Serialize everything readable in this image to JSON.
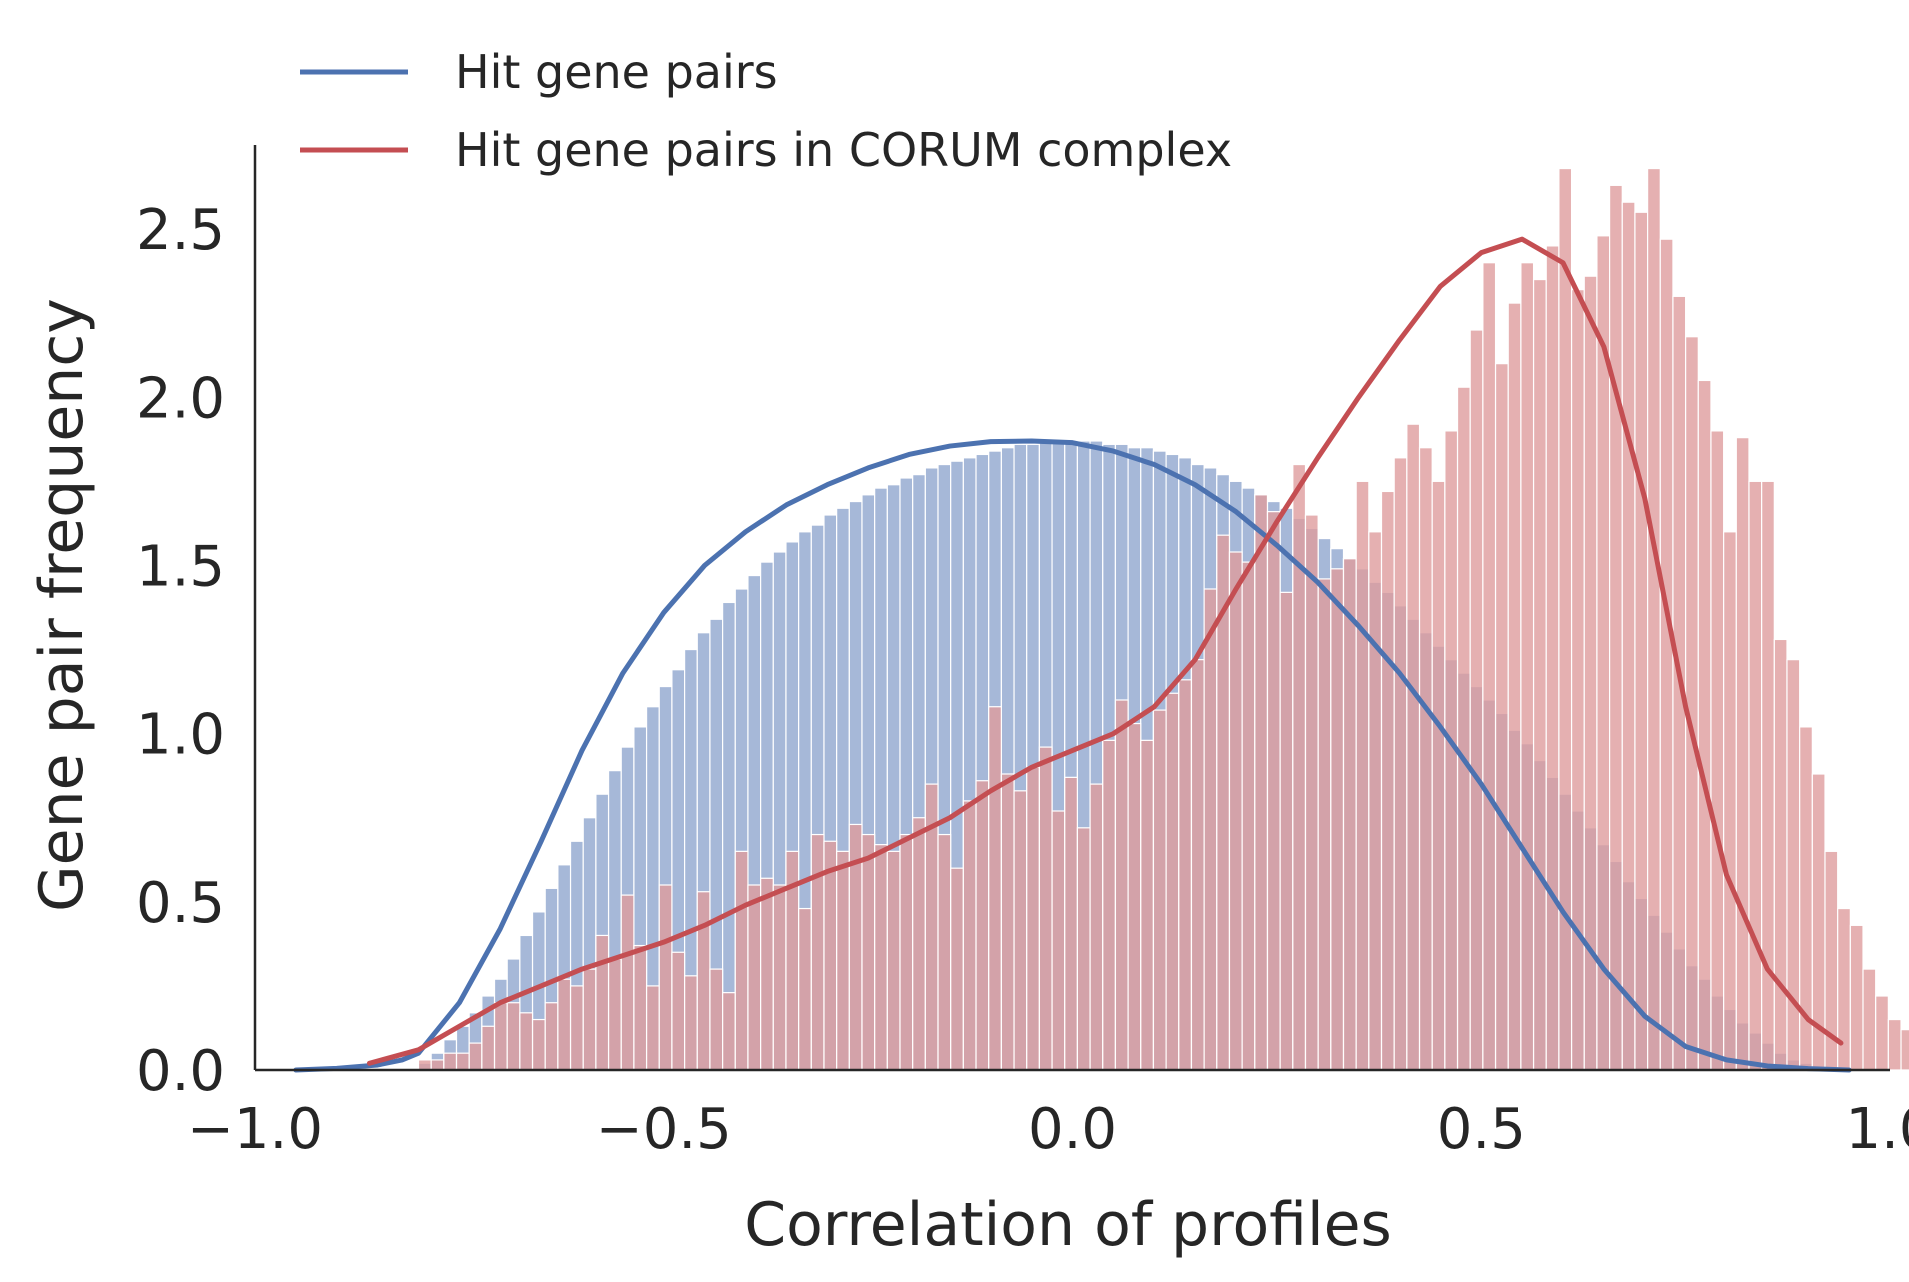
{
  "chart_data": {
    "type": "histogram",
    "title": "",
    "xlabel": "Correlation of profiles",
    "ylabel": "Gene pair frequency",
    "xlim": [
      -1.0,
      1.0
    ],
    "ylim": [
      0,
      2.75
    ],
    "xticks": [
      -1.0,
      -0.5,
      0.0,
      0.5,
      1.0
    ],
    "xtick_labels": [
      "−1.0",
      "−0.5",
      "0.0",
      "0.5",
      "1.0"
    ],
    "yticks": [
      0.0,
      0.5,
      1.0,
      1.5,
      2.0,
      2.5
    ],
    "ytick_labels": [
      "0.0",
      "0.5",
      "1.0",
      "1.5",
      "2.0",
      "2.5"
    ],
    "grid": false,
    "legend_position": "top-left, above plot",
    "bin_width": 0.0155,
    "series": [
      {
        "name": "Hit gene pairs",
        "color": "#4c72b0",
        "bar_fill": "#a6b8d8",
        "bin_start": -0.8,
        "values": [
          0.02,
          0.05,
          0.09,
          0.13,
          0.17,
          0.22,
          0.27,
          0.33,
          0.4,
          0.47,
          0.54,
          0.61,
          0.68,
          0.75,
          0.82,
          0.89,
          0.96,
          1.02,
          1.08,
          1.14,
          1.19,
          1.25,
          1.3,
          1.34,
          1.39,
          1.43,
          1.47,
          1.51,
          1.54,
          1.57,
          1.6,
          1.62,
          1.65,
          1.67,
          1.69,
          1.71,
          1.73,
          1.74,
          1.76,
          1.77,
          1.79,
          1.8,
          1.81,
          1.82,
          1.83,
          1.84,
          1.85,
          1.86,
          1.86,
          1.87,
          1.87,
          1.87,
          1.87,
          1.87,
          1.86,
          1.86,
          1.85,
          1.85,
          1.84,
          1.83,
          1.82,
          1.8,
          1.79,
          1.77,
          1.75,
          1.73,
          1.71,
          1.69,
          1.67,
          1.64,
          1.61,
          1.58,
          1.55,
          1.52,
          1.49,
          1.45,
          1.42,
          1.38,
          1.34,
          1.3,
          1.26,
          1.22,
          1.18,
          1.14,
          1.1,
          1.06,
          1.01,
          0.97,
          0.92,
          0.87,
          0.82,
          0.77,
          0.72,
          0.67,
          0.62,
          0.56,
          0.51,
          0.46,
          0.41,
          0.36,
          0.31,
          0.27,
          0.22,
          0.18,
          0.14,
          0.11,
          0.08,
          0.05,
          0.03,
          0.02
        ]
      },
      {
        "name": "Hit gene pairs in CORUM complex",
        "color": "#c44e52",
        "bar_fill": "#de9c9e",
        "bin_start": -0.8,
        "values": [
          0.03,
          0.03,
          0.05,
          0.05,
          0.08,
          0.13,
          0.2,
          0.2,
          0.17,
          0.15,
          0.2,
          0.27,
          0.25,
          0.3,
          0.4,
          0.33,
          0.52,
          0.37,
          0.25,
          0.55,
          0.35,
          0.28,
          0.53,
          0.3,
          0.23,
          0.65,
          0.55,
          0.57,
          0.55,
          0.65,
          0.48,
          0.7,
          0.68,
          0.65,
          0.73,
          0.7,
          0.67,
          0.65,
          0.7,
          0.75,
          0.85,
          0.7,
          0.6,
          0.8,
          0.86,
          1.08,
          0.88,
          0.83,
          0.9,
          0.96,
          0.77,
          0.87,
          0.72,
          0.85,
          0.98,
          1.1,
          1.03,
          0.98,
          1.07,
          1.12,
          1.16,
          1.22,
          1.43,
          1.59,
          1.54,
          1.51,
          1.71,
          1.66,
          1.42,
          1.8,
          1.65,
          1.46,
          1.49,
          1.52,
          1.75,
          1.6,
          1.72,
          1.82,
          1.92,
          1.85,
          1.75,
          1.9,
          2.03,
          2.2,
          2.4,
          2.1,
          2.28,
          2.4,
          2.35,
          2.45,
          2.68,
          2.32,
          2.36,
          2.48,
          2.63,
          2.58,
          2.55,
          2.68,
          2.47,
          2.3,
          2.18,
          2.05,
          1.9,
          1.6,
          1.88,
          1.75,
          1.75,
          1.28,
          1.22,
          1.02,
          0.88,
          0.65,
          0.48,
          0.43,
          0.3,
          0.22,
          0.15,
          0.12,
          0.07,
          0.05
        ]
      }
    ],
    "kde": [
      {
        "series": "Hit gene pairs",
        "color": "#4c72b0",
        "x": [
          -0.95,
          -0.9,
          -0.85,
          -0.82,
          -0.8,
          -0.75,
          -0.7,
          -0.65,
          -0.6,
          -0.55,
          -0.5,
          -0.45,
          -0.4,
          -0.35,
          -0.3,
          -0.25,
          -0.2,
          -0.15,
          -0.1,
          -0.05,
          0.0,
          0.05,
          0.1,
          0.15,
          0.2,
          0.25,
          0.3,
          0.35,
          0.4,
          0.45,
          0.5,
          0.55,
          0.6,
          0.65,
          0.7,
          0.75,
          0.8,
          0.85,
          0.9,
          0.95
        ],
        "y": [
          0.0,
          0.005,
          0.015,
          0.03,
          0.05,
          0.2,
          0.42,
          0.68,
          0.95,
          1.18,
          1.36,
          1.5,
          1.6,
          1.68,
          1.74,
          1.79,
          1.83,
          1.855,
          1.868,
          1.87,
          1.865,
          1.84,
          1.8,
          1.74,
          1.66,
          1.56,
          1.45,
          1.32,
          1.18,
          1.02,
          0.85,
          0.66,
          0.47,
          0.3,
          0.16,
          0.07,
          0.03,
          0.012,
          0.004,
          0.0
        ]
      },
      {
        "series": "Hit gene pairs in CORUM complex",
        "color": "#c44e52",
        "x": [
          -0.86,
          -0.8,
          -0.75,
          -0.7,
          -0.65,
          -0.6,
          -0.55,
          -0.5,
          -0.45,
          -0.4,
          -0.35,
          -0.3,
          -0.25,
          -0.2,
          -0.15,
          -0.1,
          -0.05,
          0.0,
          0.05,
          0.1,
          0.15,
          0.2,
          0.25,
          0.3,
          0.35,
          0.4,
          0.45,
          0.5,
          0.55,
          0.6,
          0.65,
          0.7,
          0.75,
          0.8,
          0.85,
          0.9,
          0.94
        ],
        "y": [
          0.02,
          0.06,
          0.13,
          0.2,
          0.25,
          0.3,
          0.34,
          0.38,
          0.43,
          0.49,
          0.54,
          0.59,
          0.63,
          0.69,
          0.75,
          0.83,
          0.9,
          0.95,
          1.0,
          1.08,
          1.22,
          1.43,
          1.63,
          1.82,
          2.0,
          2.17,
          2.33,
          2.43,
          2.47,
          2.4,
          2.15,
          1.7,
          1.08,
          0.58,
          0.3,
          0.15,
          0.08
        ]
      }
    ]
  }
}
